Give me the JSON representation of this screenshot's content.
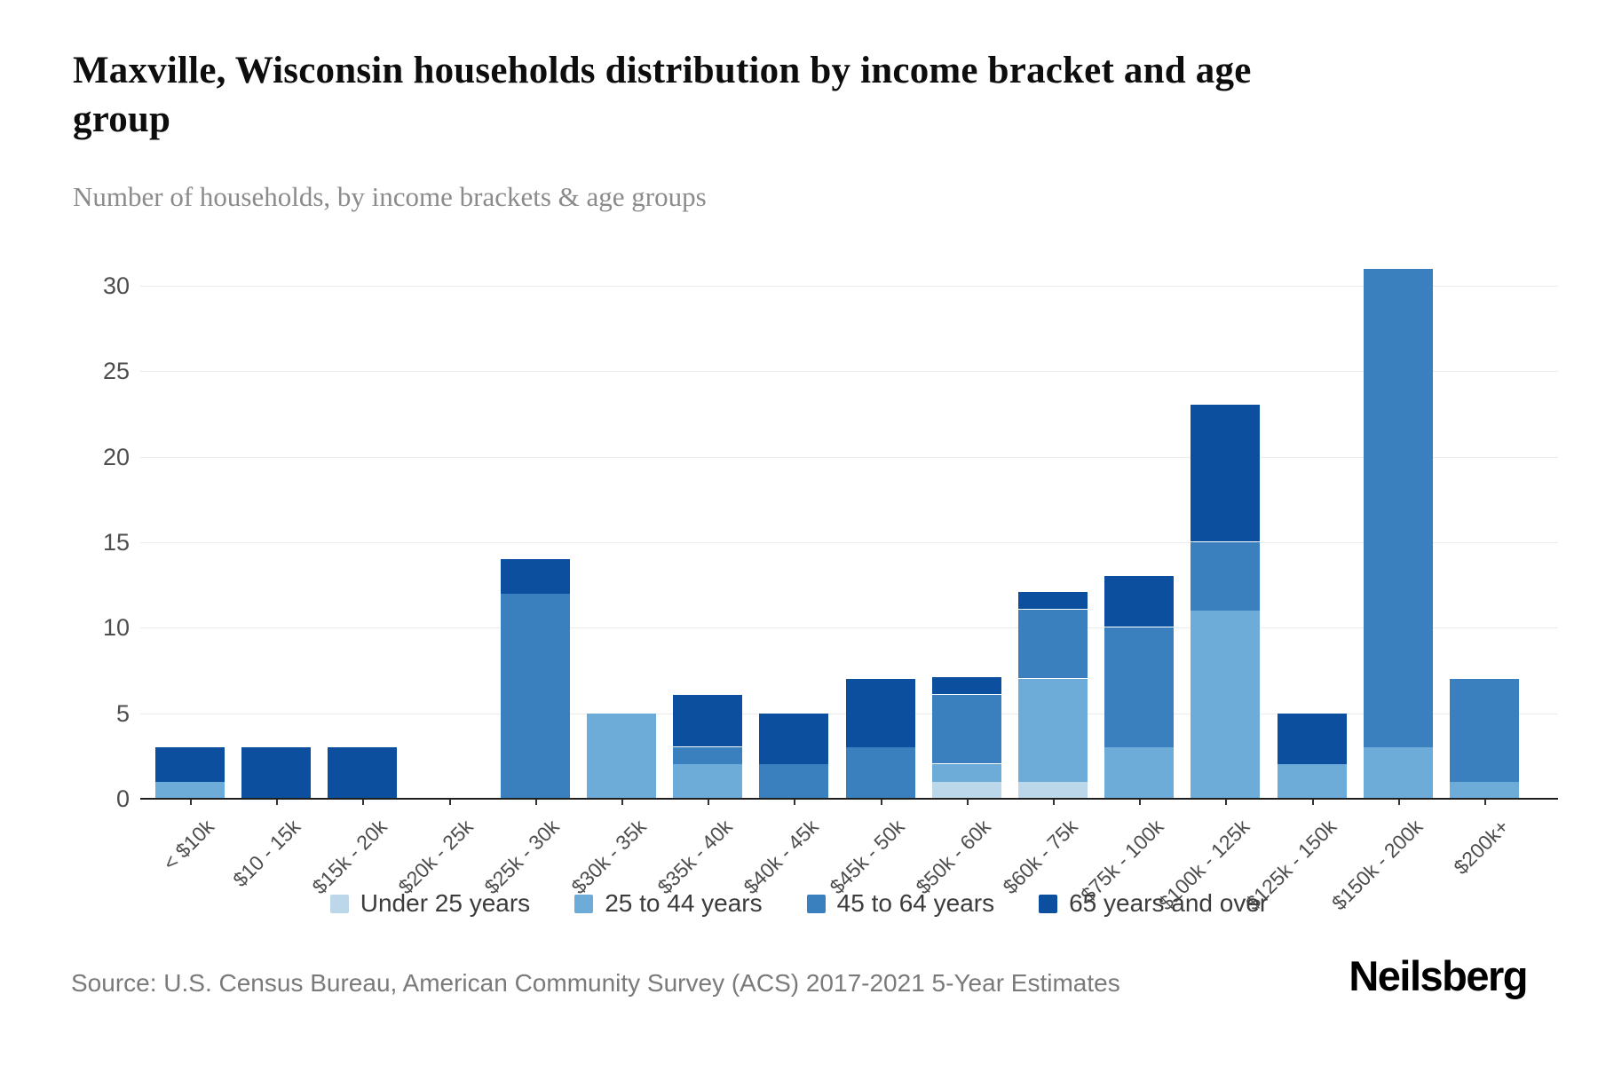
{
  "header": {
    "title": "Maxville, Wisconsin households distribution by income bracket and age group",
    "subtitle": "Number of households, by income brackets & age groups"
  },
  "chart_data": {
    "type": "bar",
    "stacked": true,
    "title": "Maxville, Wisconsin households distribution by income bracket and age group",
    "xlabel": "",
    "ylabel": "Number of households",
    "ylim": [
      0,
      30
    ],
    "yticks": [
      0,
      5,
      10,
      15,
      20,
      25,
      30
    ],
    "grid": true,
    "legend_position": "bottom",
    "categories": [
      "< $10k",
      "$10 - 15k",
      "$15k - 20k",
      "$20k - 25k",
      "$25k - 30k",
      "$30k - 35k",
      "$35k - 40k",
      "$40k - 45k",
      "$45k - 50k",
      "$50k - 60k",
      "$60k - 75k",
      "$75k - 100k",
      "$100k - 125k",
      "$125k - 150k",
      "$150k - 200k",
      "$200k+"
    ],
    "series": [
      {
        "name": "Under 25 years",
        "color": "#bcd6ea",
        "values": [
          0,
          0,
          0,
          0,
          0,
          0,
          0,
          0,
          0,
          1,
          1,
          0,
          0,
          0,
          0,
          0
        ]
      },
      {
        "name": "25 to 44 years",
        "color": "#6dacd8",
        "values": [
          1,
          0,
          0,
          0,
          0,
          5,
          2,
          0,
          0,
          1,
          6,
          3,
          11,
          2,
          3,
          1
        ]
      },
      {
        "name": "45 to 64 years",
        "color": "#3b80be",
        "values": [
          0,
          0,
          0,
          0,
          12,
          0,
          1,
          2,
          3,
          4,
          4,
          7,
          4,
          0,
          28,
          6
        ]
      },
      {
        "name": "65 years and over",
        "color": "#0c4f9e",
        "values": [
          2,
          3,
          3,
          0,
          2,
          0,
          3,
          3,
          4,
          1,
          1,
          3,
          8,
          3,
          0,
          0
        ]
      }
    ],
    "totals": [
      3,
      3,
      3,
      0,
      14,
      5,
      6,
      5,
      7,
      7,
      12,
      13,
      23,
      5,
      31,
      7
    ]
  },
  "footer": {
    "source": "Source: U.S. Census Bureau, American Community Survey (ACS) 2017-2021 5-Year Estimates",
    "brand": "Neilsberg"
  }
}
